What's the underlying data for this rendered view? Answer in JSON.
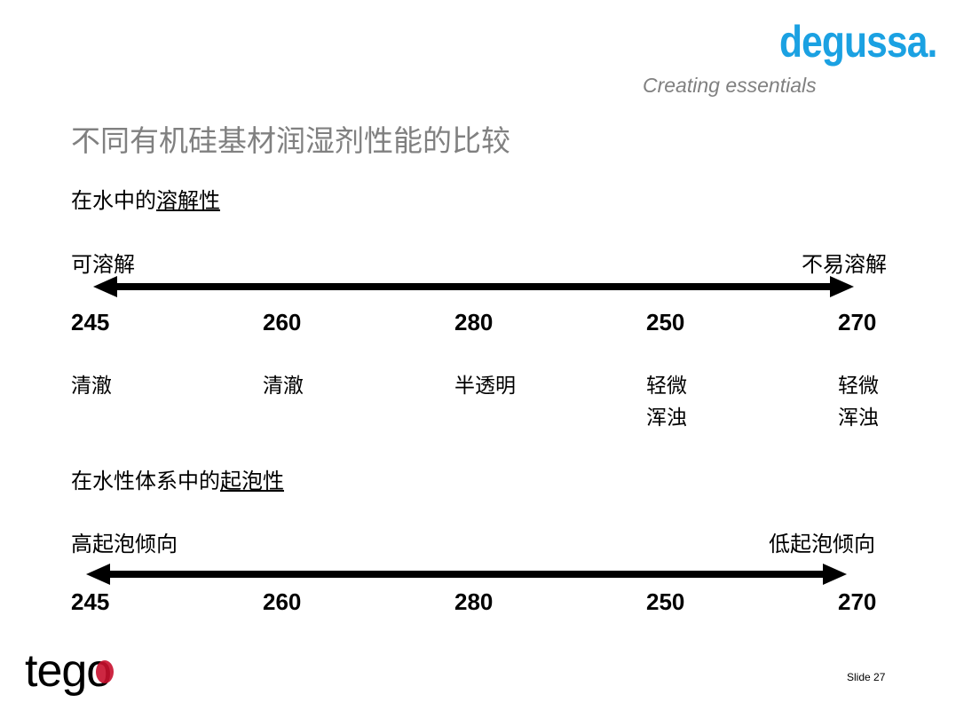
{
  "header": {
    "brand": "degussa.",
    "tagline": "Creating essentials",
    "brand_color": "#1ba1e2"
  },
  "title": "不同有机硅基材润湿剂性能的比较",
  "section1": {
    "heading_prefix": "在水中的",
    "heading_underlined": "溶解性",
    "left_label": "可溶解",
    "right_label": "不易溶解",
    "items": [
      {
        "value": "245",
        "desc": [
          "清澈"
        ]
      },
      {
        "value": "260",
        "desc": [
          "清澈"
        ]
      },
      {
        "value": "280",
        "desc": [
          "半透明"
        ]
      },
      {
        "value": "250",
        "desc": [
          "轻微",
          "浑浊"
        ]
      },
      {
        "value": "270",
        "desc": [
          "轻微",
          "浑浊"
        ]
      }
    ]
  },
  "section2": {
    "heading_prefix": "在水性体系中的",
    "heading_underlined": "起泡性",
    "left_label": "高起泡倾向",
    "right_label": "低起泡倾向",
    "items": [
      {
        "value": "245"
      },
      {
        "value": "260"
      },
      {
        "value": "280"
      },
      {
        "value": "250"
      },
      {
        "value": "270"
      }
    ]
  },
  "footer": {
    "logo": "tego",
    "slide": "Slide 27"
  }
}
